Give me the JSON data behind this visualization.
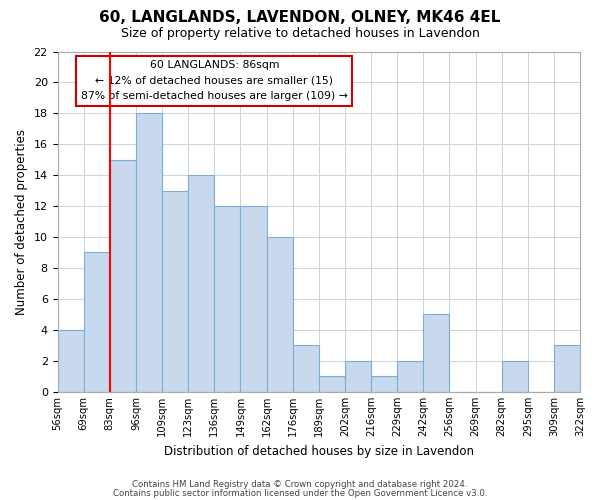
{
  "title": "60, LANGLANDS, LAVENDON, OLNEY, MK46 4EL",
  "subtitle": "Size of property relative to detached houses in Lavendon",
  "xlabel": "Distribution of detached houses by size in Lavendon",
  "ylabel": "Number of detached properties",
  "xlabels": [
    "56sqm",
    "69sqm",
    "83sqm",
    "96sqm",
    "109sqm",
    "123sqm",
    "136sqm",
    "149sqm",
    "162sqm",
    "176sqm",
    "189sqm",
    "202sqm",
    "216sqm",
    "229sqm",
    "242sqm",
    "256sqm",
    "269sqm",
    "282sqm",
    "295sqm",
    "309sqm",
    "322sqm"
  ],
  "bar_heights": [
    4,
    9,
    15,
    18,
    13,
    14,
    12,
    12,
    10,
    3,
    1,
    2,
    1,
    2,
    5,
    0,
    0,
    2,
    0,
    3
  ],
  "bar_color": "#c8d8ed",
  "bar_edge_color": "#7aaed6",
  "ylim": [
    0,
    22
  ],
  "yticks": [
    0,
    2,
    4,
    6,
    8,
    10,
    12,
    14,
    16,
    18,
    20,
    22
  ],
  "red_line_index": 2,
  "annotation_line1": "60 LANGLANDS: 86sqm",
  "annotation_line2": "← 12% of detached houses are smaller (15)",
  "annotation_line3": "87% of semi-detached houses are larger (109) →",
  "annotation_box_color": "#ffffff",
  "annotation_box_edge": "#cc0000",
  "footer_line1": "Contains HM Land Registry data © Crown copyright and database right 2024.",
  "footer_line2": "Contains public sector information licensed under the Open Government Licence v3.0.",
  "background_color": "#ffffff",
  "grid_color": "#c8d4e0"
}
